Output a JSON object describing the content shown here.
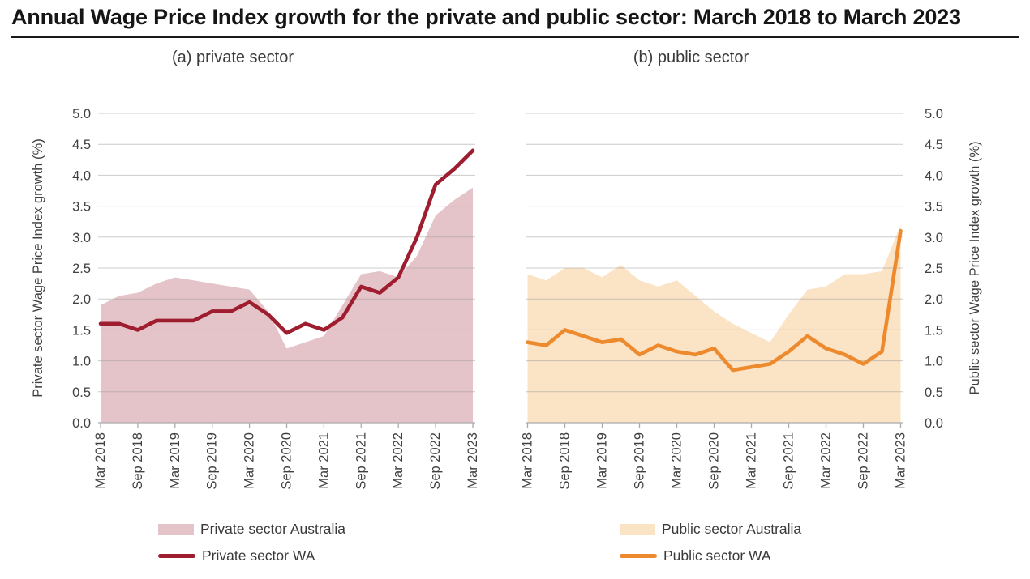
{
  "page": {
    "title": "Annual Wage Price Index growth for the private and public sector: March 2018 to March 2023"
  },
  "colors": {
    "gridline": "#9a9a9a",
    "axis_line": "#ababab",
    "axis_text": "#404040",
    "title_text": "#161616",
    "underline": "#1a1a1a"
  },
  "chart_data": [
    {
      "type": "area",
      "title": "(a) private sector",
      "ylabel": "Private sector Wage Price Index growth (%)",
      "xlabel": "",
      "ylim": [
        0.0,
        5.0
      ],
      "ytick_step": 0.5,
      "y_axis_side": "left",
      "grid": true,
      "legend_position": "bottom",
      "categories": [
        "Mar 2018",
        "Jun 2018",
        "Sep 2018",
        "Dec 2018",
        "Mar 2019",
        "Jun 2019",
        "Sep 2019",
        "Dec 2019",
        "Mar 2020",
        "Jun 2020",
        "Sep 2020",
        "Dec 2020",
        "Mar 2021",
        "Jun 2021",
        "Sep 2021",
        "Dec 2021",
        "Mar 2022",
        "Jun 2022",
        "Sep 2022",
        "Dec 2022",
        "Mar 2023"
      ],
      "x_tick_labels": [
        "Mar 2018",
        "Sep 2018",
        "Mar 2019",
        "Sep 2019",
        "Mar 2020",
        "Sep 2020",
        "Mar 2021",
        "Sep 2021",
        "Mar 2022",
        "Sep 2022",
        "Mar 2023"
      ],
      "series": [
        {
          "name": "Private sector Australia",
          "type": "area",
          "color": "#e5c4c9",
          "values": [
            1.9,
            2.05,
            2.1,
            2.25,
            2.35,
            2.3,
            2.25,
            2.2,
            2.15,
            1.8,
            1.2,
            1.3,
            1.4,
            1.9,
            2.4,
            2.45,
            2.35,
            2.7,
            3.35,
            3.6,
            3.8
          ]
        },
        {
          "name": "Private sector WA",
          "type": "line",
          "color": "#9e1d2e",
          "values": [
            1.6,
            1.6,
            1.5,
            1.65,
            1.65,
            1.65,
            1.8,
            1.8,
            1.95,
            1.75,
            1.45,
            1.6,
            1.5,
            1.7,
            2.2,
            2.1,
            2.35,
            3.0,
            3.85,
            4.1,
            4.4
          ]
        }
      ]
    },
    {
      "type": "area",
      "title": "(b) public sector",
      "ylabel": "Public sector Wage Price Index growth (%)",
      "xlabel": "",
      "ylim": [
        0.0,
        5.0
      ],
      "ytick_step": 0.5,
      "y_axis_side": "right",
      "grid": true,
      "legend_position": "bottom",
      "categories": [
        "Mar 2018",
        "Jun 2018",
        "Sep 2018",
        "Dec 2018",
        "Mar 2019",
        "Jun 2019",
        "Sep 2019",
        "Dec 2019",
        "Mar 2020",
        "Jun 2020",
        "Sep 2020",
        "Dec 2020",
        "Mar 2021",
        "Jun 2021",
        "Sep 2021",
        "Dec 2021",
        "Mar 2022",
        "Jun 2022",
        "Sep 2022",
        "Dec 2022",
        "Mar 2023"
      ],
      "x_tick_labels": [
        "Mar 2018",
        "Sep 2018",
        "Mar 2019",
        "Sep 2019",
        "Mar 2020",
        "Sep 2020",
        "Mar 2021",
        "Sep 2021",
        "Mar 2022",
        "Sep 2022",
        "Mar 2023"
      ],
      "series": [
        {
          "name": "Public sector Australia",
          "type": "area",
          "color": "#fbe3c6",
          "values": [
            2.4,
            2.3,
            2.5,
            2.5,
            2.35,
            2.55,
            2.3,
            2.2,
            2.3,
            2.05,
            1.8,
            1.6,
            1.45,
            1.3,
            1.75,
            2.15,
            2.2,
            2.4,
            2.4,
            2.45,
            3.2
          ]
        },
        {
          "name": "Public sector WA",
          "type": "line",
          "color": "#ee8a2e",
          "values": [
            1.3,
            1.25,
            1.5,
            1.4,
            1.3,
            1.35,
            1.1,
            1.25,
            1.15,
            1.1,
            1.2,
            0.85,
            0.9,
            0.95,
            1.15,
            1.4,
            1.2,
            1.1,
            0.95,
            1.15,
            3.1
          ]
        }
      ]
    }
  ]
}
